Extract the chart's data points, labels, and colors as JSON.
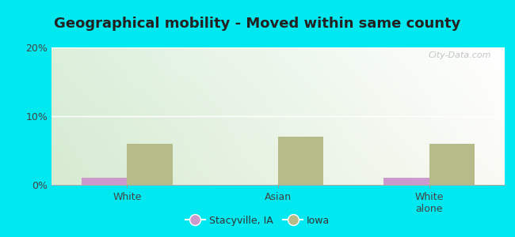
{
  "title": "Geographical mobility - Moved within same county",
  "categories": [
    "White",
    "Asian",
    "White\nalone"
  ],
  "stacyville_values": [
    1.0,
    0.0,
    1.0
  ],
  "iowa_values": [
    6.0,
    7.0,
    6.0
  ],
  "stacyville_color": "#cc99cc",
  "iowa_color": "#b5bc8a",
  "ylim": [
    0,
    20
  ],
  "yticks": [
    0,
    10,
    20
  ],
  "ytick_labels": [
    "0%",
    "10%",
    "20%"
  ],
  "background_outer": "#00e8f0",
  "background_plot_topleft": "#d8edcc",
  "background_plot_topright": "#e8f5e2",
  "background_plot_bottomleft": "#c8e8d8",
  "background_plot_bottomright": "#ddf0e8",
  "bar_width": 0.3,
  "group_positions": [
    1,
    2,
    3
  ],
  "legend_labels": [
    "Stacyville, IA",
    "Iowa"
  ],
  "title_fontsize": 13,
  "tick_fontsize": 9,
  "legend_fontsize": 9
}
